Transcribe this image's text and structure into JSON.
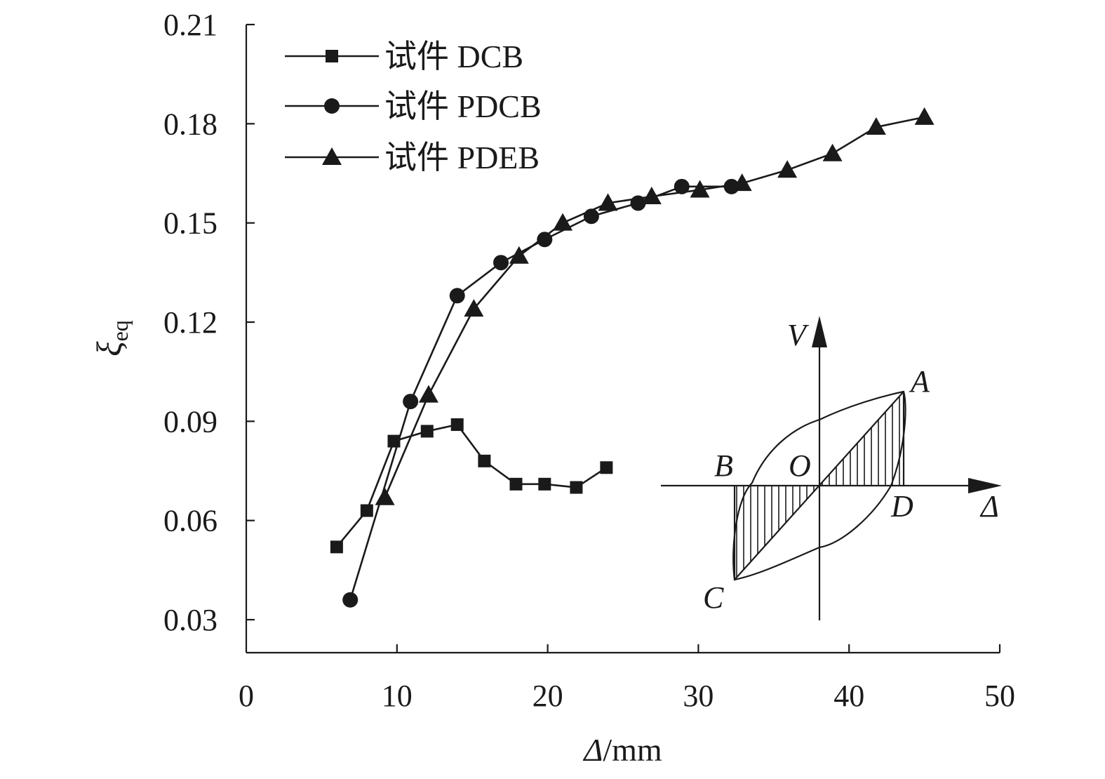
{
  "chart_data": {
    "type": "line",
    "xlabel": "Δ/mm",
    "xlabel_var": "Δ",
    "xlabel_unit": "/mm",
    "ylabel": "ξeq",
    "ylabel_main": "ξ",
    "ylabel_sub": "eq",
    "xlim": [
      0,
      50
    ],
    "ylim": [
      0.02,
      0.21
    ],
    "x_ticks": [
      0,
      10,
      20,
      30,
      40,
      50
    ],
    "x_tick_labels": [
      "0",
      "10",
      "20",
      "30",
      "40",
      "50"
    ],
    "y_ticks": [
      0.03,
      0.06,
      0.09,
      0.12,
      0.15,
      0.18,
      0.21
    ],
    "y_tick_labels": [
      "0.03",
      "0.06",
      "0.09",
      "0.12",
      "0.15",
      "0.18",
      "0.21"
    ],
    "grid": false,
    "legend_position": "top-left",
    "series": [
      {
        "name": "试件 DCB",
        "marker": "square",
        "x": [
          6,
          8,
          9.8,
          12,
          14,
          15.8,
          17.9,
          19.8,
          21.9,
          23.9
        ],
        "y": [
          0.052,
          0.063,
          0.084,
          0.087,
          0.089,
          0.078,
          0.071,
          0.071,
          0.07,
          0.076
        ]
      },
      {
        "name": "试件 PDCB",
        "marker": "circle",
        "x": [
          6.9,
          10.9,
          14,
          16.9,
          19.8,
          22.9,
          26,
          28.9,
          32.2
        ],
        "y": [
          0.036,
          0.096,
          0.128,
          0.138,
          0.145,
          0.152,
          0.156,
          0.161,
          0.161
        ]
      },
      {
        "name": "试件 PDEB",
        "marker": "triangle",
        "x": [
          9.2,
          12.1,
          15.1,
          18.1,
          21,
          24,
          26.9,
          30.1,
          32.9,
          35.9,
          38.9,
          41.8,
          45
        ],
        "y": [
          0.067,
          0.098,
          0.124,
          0.14,
          0.15,
          0.156,
          0.158,
          0.16,
          0.162,
          0.166,
          0.171,
          0.179,
          0.182
        ]
      }
    ],
    "inset": {
      "labels": {
        "vertical_axis": "V",
        "horizontal_axis": "Δ",
        "A": "A",
        "B": "B",
        "O": "O",
        "C": "C",
        "D": "D"
      }
    }
  }
}
